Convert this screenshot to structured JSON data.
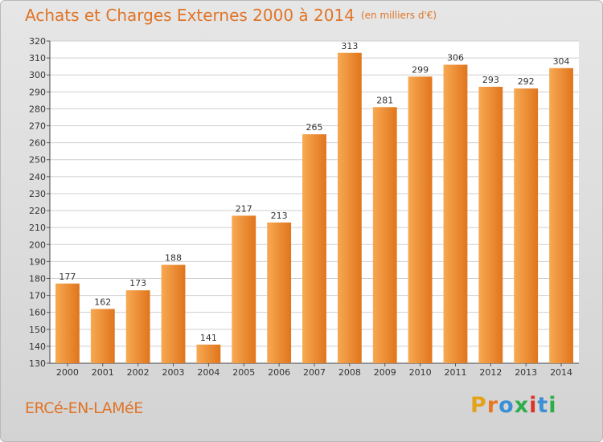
{
  "header": {
    "title": "Achats et Charges Externes 2000 à 2014",
    "subtitle": "(en milliers d'€)"
  },
  "commune": "ERCé-EN-LAMéE",
  "logo": {
    "letters": [
      "P",
      "r",
      "o",
      "x",
      "i",
      "t",
      "i"
    ],
    "colors": [
      "#e3a21a",
      "#e87722",
      "#3a8fd6",
      "#2eae4a",
      "#d9342b",
      "#3a8fd6",
      "#2eae4a"
    ]
  },
  "colors": {
    "bar_light": "#f7a953",
    "bar_dark": "#e0751c",
    "title": "#e07427"
  },
  "chart_data": {
    "type": "bar",
    "title": "Achats et Charges Externes 2000 à 2014",
    "subtitle": "(en milliers d'€)",
    "categories": [
      "2000",
      "2001",
      "2002",
      "2003",
      "2004",
      "2005",
      "2006",
      "2007",
      "2008",
      "2009",
      "2010",
      "2011",
      "2012",
      "2013",
      "2014"
    ],
    "values": [
      177,
      162,
      173,
      188,
      141,
      217,
      213,
      265,
      313,
      281,
      299,
      306,
      293,
      292,
      304
    ],
    "ylim": [
      130,
      320
    ],
    "yticks": [
      130,
      140,
      150,
      160,
      170,
      180,
      190,
      200,
      210,
      220,
      230,
      240,
      250,
      260,
      270,
      280,
      290,
      300,
      310,
      320
    ],
    "grid": true
  }
}
